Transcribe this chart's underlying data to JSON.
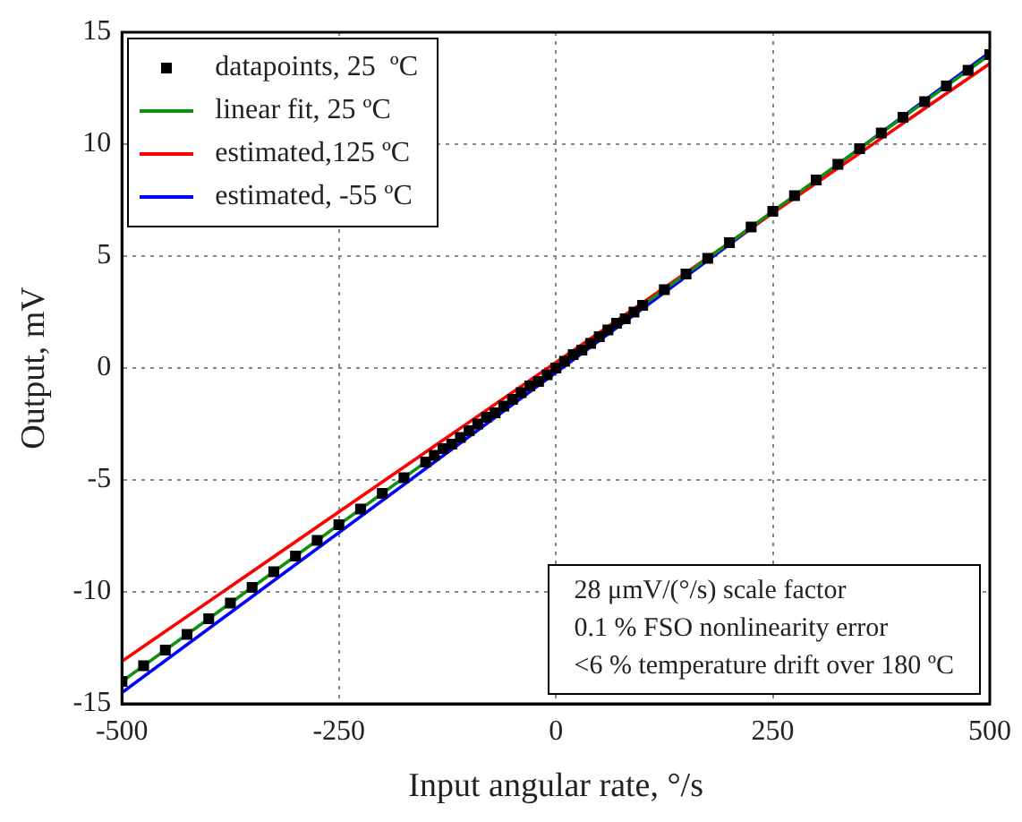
{
  "chart_data": {
    "type": "line",
    "xlabel": "Input angular rate, °/s",
    "ylabel": "Output, mV",
    "xlim": [
      -500,
      500
    ],
    "xticks": [
      -500,
      -250,
      0,
      250,
      500
    ],
    "ylim": [
      -15,
      15
    ],
    "yticks": [
      -15,
      -10,
      -5,
      0,
      5,
      10,
      15
    ],
    "grid": true,
    "legend": "top left",
    "series": [
      {
        "name": "datapoints, 25  ºC",
        "type": "scatter",
        "marker": "square",
        "color": "#000000",
        "x": [
          -500,
          -475,
          -450,
          -425,
          -400,
          -375,
          -350,
          -325,
          -300,
          -275,
          -250,
          -225,
          -200,
          -175,
          -150,
          -140,
          -130,
          -120,
          -110,
          -100,
          -90,
          -80,
          -70,
          -60,
          -50,
          -40,
          -30,
          -20,
          -10,
          0,
          10,
          20,
          30,
          40,
          50,
          60,
          70,
          80,
          90,
          100,
          125,
          150,
          175,
          200,
          225,
          250,
          275,
          300,
          325,
          350,
          375,
          400,
          425,
          450,
          475,
          500
        ],
        "values": [
          -14.0,
          -13.3,
          -12.6,
          -11.9,
          -11.2,
          -10.5,
          -9.8,
          -9.1,
          -8.4,
          -7.7,
          -7.0,
          -6.3,
          -5.6,
          -4.9,
          -4.2,
          -3.9,
          -3.6,
          -3.4,
          -3.1,
          -2.8,
          -2.5,
          -2.2,
          -2.0,
          -1.7,
          -1.4,
          -1.1,
          -0.8,
          -0.6,
          -0.3,
          0,
          0.3,
          0.6,
          0.8,
          1.1,
          1.4,
          1.7,
          2.0,
          2.2,
          2.5,
          2.8,
          3.5,
          4.2,
          4.9,
          5.6,
          6.3,
          7.0,
          7.7,
          8.4,
          9.1,
          9.8,
          10.5,
          11.2,
          11.9,
          12.6,
          13.3,
          14.0
        ]
      },
      {
        "name": "linear fit, 25 ºC",
        "marker": "none",
        "color": "#109010",
        "x": [
          -500,
          500
        ],
        "values": [
          -14.0,
          14.0
        ]
      },
      {
        "name": "estimated,125 ºC",
        "marker": "none",
        "color": "#ff0000",
        "x": [
          -500,
          500
        ],
        "values": [
          -13.1,
          13.6
        ]
      },
      {
        "name": "estimated, -55 ºC",
        "marker": "none",
        "color": "#0000ff",
        "x": [
          -500,
          500
        ],
        "values": [
          -14.5,
          14.1
        ]
      }
    ],
    "annotations": [
      "28 μmV/(°/s) scale factor",
      "0.1 % FSO nonlinearity error",
      "<6 % temperature drift over 180 ºC"
    ]
  }
}
